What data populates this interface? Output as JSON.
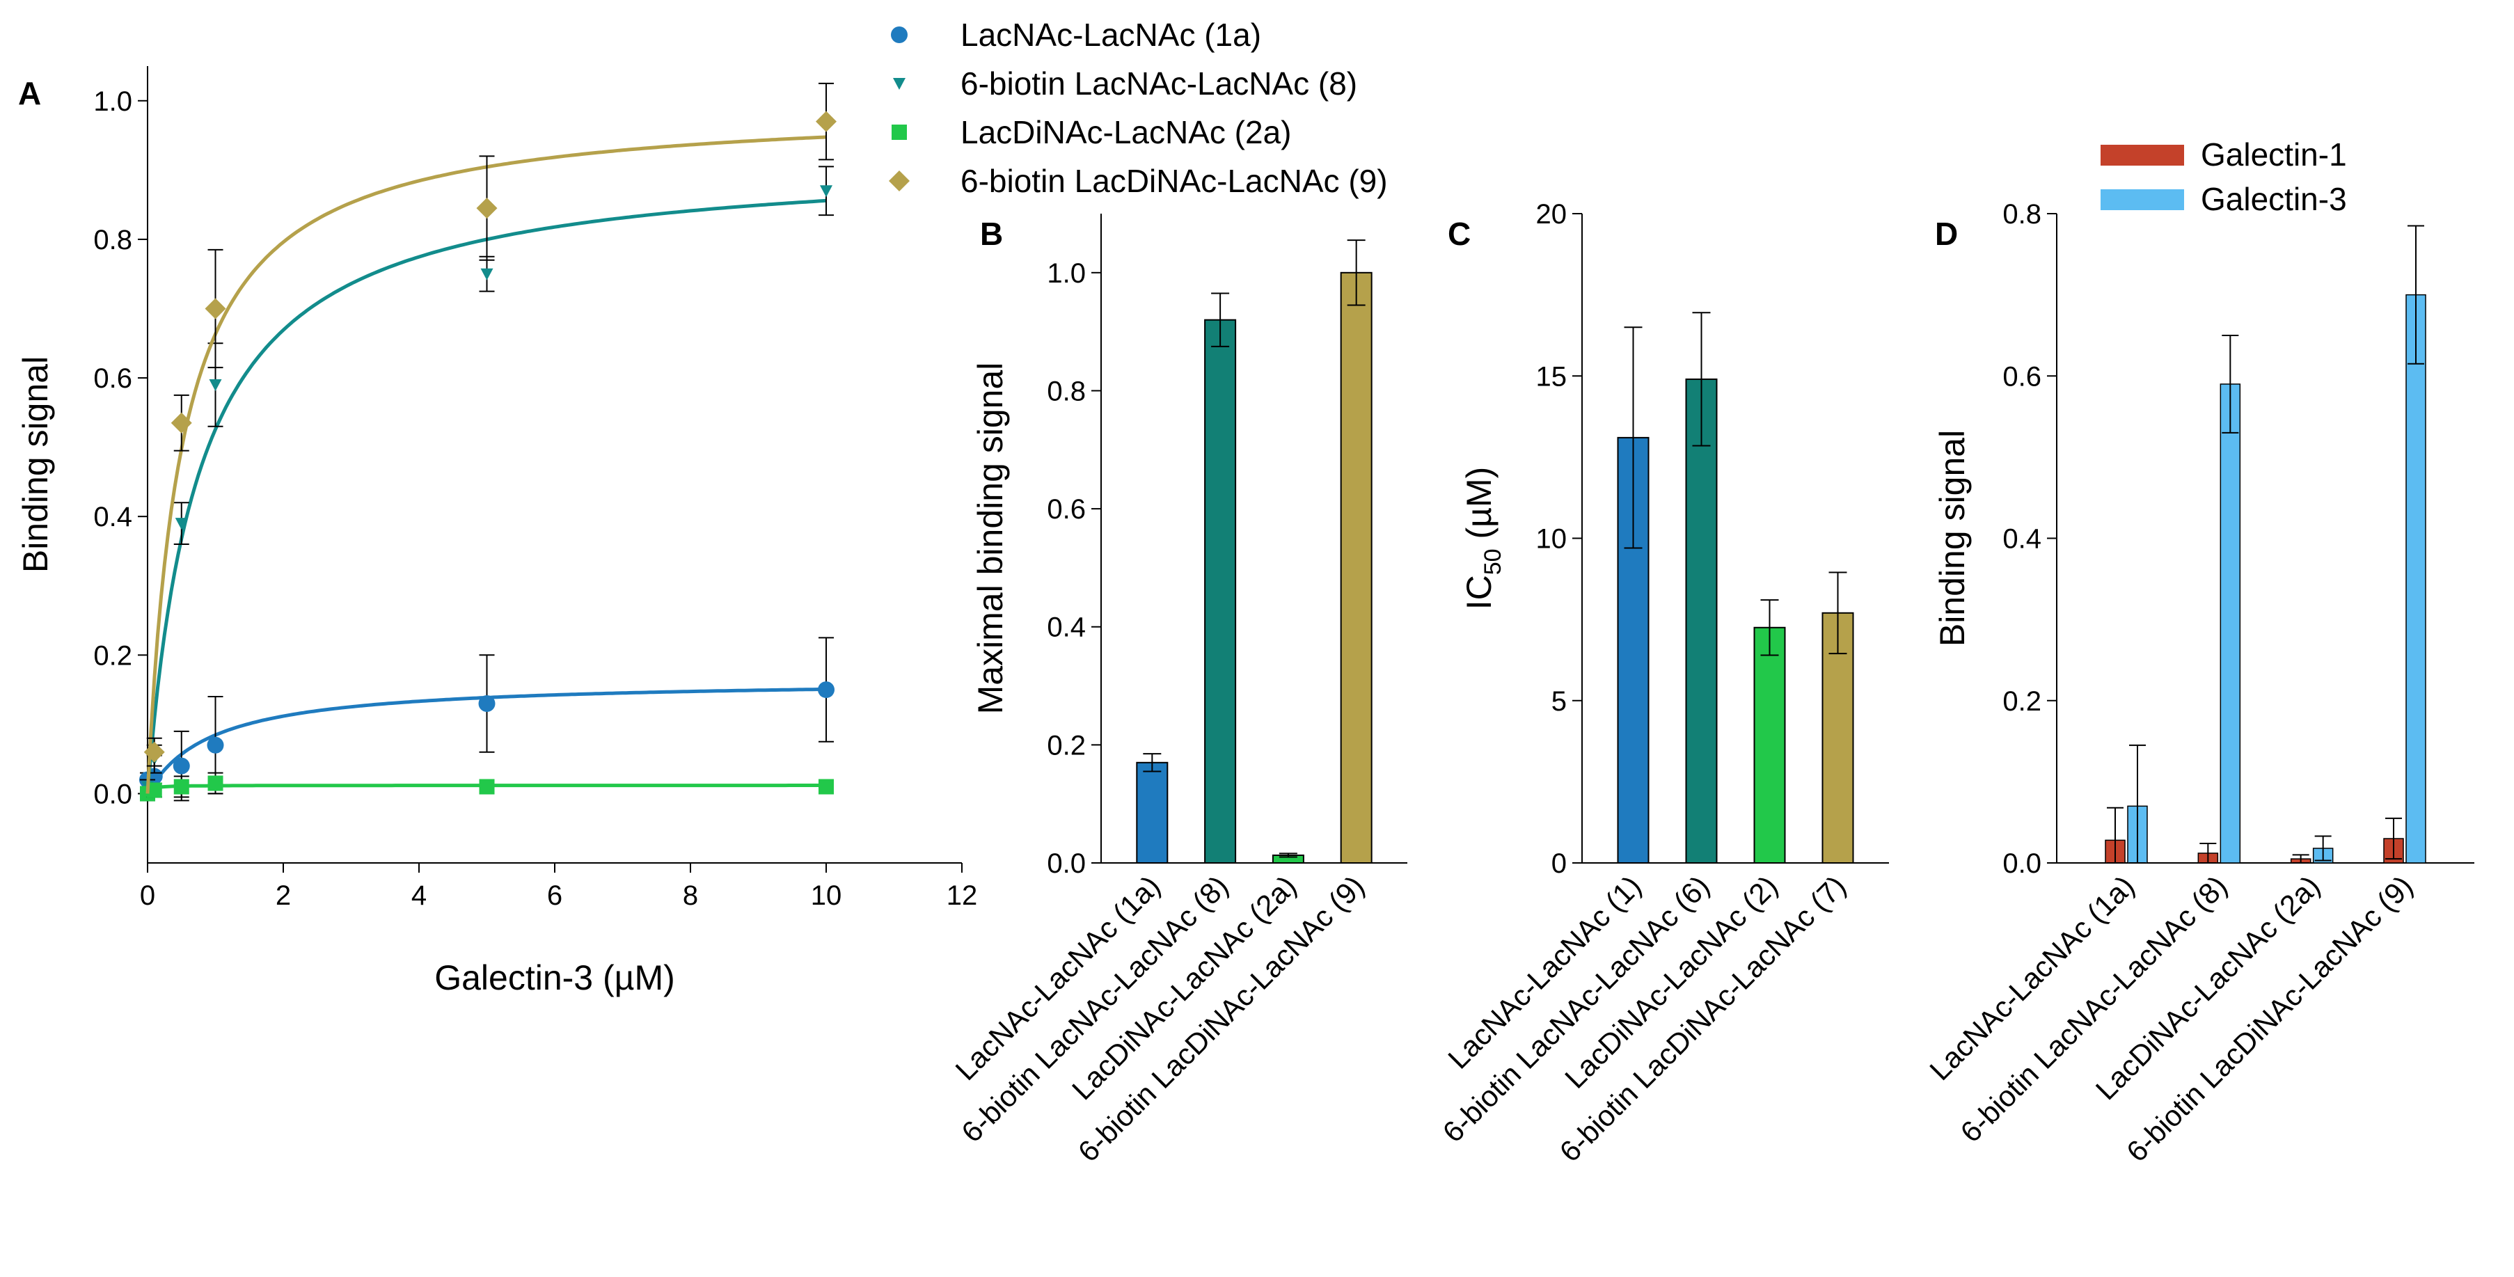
{
  "chart_data": [
    {
      "panel": "A",
      "type": "scatter",
      "xlabel": "Galectin-3 (µM)",
      "ylabel": "Binding signal",
      "xlim": [
        0,
        12
      ],
      "ylim": [
        -0.1,
        1.05
      ],
      "xticks": [
        0,
        2,
        4,
        6,
        8,
        10,
        12
      ],
      "yticks": [
        0.0,
        0.2,
        0.4,
        0.6,
        0.8,
        1.0
      ],
      "ytick_labels": [
        "0.0",
        "0.2",
        "0.4",
        "0.6",
        "0.8",
        "1.0"
      ],
      "legend_position": "top",
      "series": [
        {
          "name": "LacNAc-LacNAc (1a)",
          "color": "#1f7bbf",
          "marker": "circle",
          "x": [
            0,
            0.1,
            0.5,
            1,
            5,
            10
          ],
          "y": [
            0.02,
            0.025,
            0.04,
            0.07,
            0.13,
            0.15
          ],
          "err": [
            0.01,
            0.03,
            0.05,
            0.07,
            0.07,
            0.075
          ],
          "fit": {
            "bmax": 0.165,
            "kd": 0.95
          }
        },
        {
          "name": "6-biotin LacNAc-LacNAc (8)",
          "color": "#128c8c",
          "marker": "triangle-down",
          "x": [
            0,
            0.1,
            0.5,
            1,
            5,
            10
          ],
          "y": [
            0.01,
            0.05,
            0.39,
            0.59,
            0.75,
            0.87
          ],
          "err": [
            0.01,
            0.02,
            0.03,
            0.06,
            0.025,
            0.035
          ],
          "fit": {
            "bmax": 0.92,
            "kd": 0.75
          }
        },
        {
          "name": "LacDiNAc-LacNAc (2a)",
          "color": "#22c84a",
          "marker": "square",
          "x": [
            0,
            0.1,
            0.5,
            1,
            5,
            10
          ],
          "y": [
            0.0,
            0.005,
            0.01,
            0.015,
            0.01,
            0.01
          ],
          "err": [
            0.01,
            0.01,
            0.015,
            0.015,
            0.01,
            0.005
          ],
          "fit": {
            "bmax": 0.012,
            "kd": 0.05
          }
        },
        {
          "name": "6-biotin LacDiNAc-LacNAc (9)",
          "color": "#b5a14b",
          "marker": "diamond",
          "x": [
            0.1,
            0.5,
            1,
            5,
            10
          ],
          "y": [
            0.06,
            0.535,
            0.7,
            0.845,
            0.97
          ],
          "err": [
            0.02,
            0.04,
            0.085,
            0.075,
            0.055
          ],
          "fit": {
            "bmax": 0.995,
            "kd": 0.5
          }
        }
      ]
    },
    {
      "panel": "B",
      "type": "bar",
      "ylabel": "Maximal binding signal",
      "ylim": [
        0,
        1.1
      ],
      "yticks": [
        0.0,
        0.2,
        0.4,
        0.6,
        0.8,
        1.0
      ],
      "ytick_labels": [
        "0.0",
        "0.2",
        "0.4",
        "0.6",
        "0.8",
        "1.0"
      ],
      "categories": [
        "LacNAc-LacNAc (1a)",
        "6-biotin LacNAc-LacNAc (8)",
        "LacDiNAc-LacNAc (2a)",
        "6-biotin LacDiNAc-LacNAc (9)"
      ],
      "values": [
        0.17,
        0.92,
        0.013,
        1.0
      ],
      "errors": [
        0.015,
        0.045,
        0.003,
        0.055
      ],
      "colors": [
        "#1f7bbf",
        "#128075",
        "#22c84a",
        "#b5a14b"
      ]
    },
    {
      "panel": "C",
      "type": "bar",
      "ylabel_main": "IC",
      "ylabel_sub": "50",
      "ylabel_unit": " (µM)",
      "ylim": [
        0,
        20
      ],
      "yticks": [
        0,
        5,
        10,
        15,
        20
      ],
      "ytick_labels": [
        "0",
        "5",
        "10",
        "15",
        "20"
      ],
      "categories": [
        "LacNAc-LacNAc (1)",
        "6-biotin LacNAc-LacNAc (6)",
        "LacDiNAc-LacNAc (2)",
        "6-biotin LacDiNAc-LacNAc (7)"
      ],
      "values": [
        13.1,
        14.9,
        7.25,
        7.7
      ],
      "errors": [
        3.4,
        2.05,
        0.85,
        1.25
      ],
      "colors": [
        "#1f7bbf",
        "#128075",
        "#22c84a",
        "#b5a14b"
      ]
    },
    {
      "panel": "D",
      "type": "bar",
      "ylabel": "Binding signal",
      "ylim": [
        0,
        0.8
      ],
      "yticks": [
        0.0,
        0.2,
        0.4,
        0.6,
        0.8
      ],
      "ytick_labels": [
        "0.0",
        "0.2",
        "0.4",
        "0.6",
        "0.8"
      ],
      "categories": [
        "LacNAc-LacNAc (1a)",
        "6-biotin LacNAc-LacNAc (8)",
        "LacDiNAc-LacNAc (2a)",
        "6-biotin LacDiNAc-LacNAc (9)"
      ],
      "legend_position": "top-left",
      "series": [
        {
          "name": "Galectin-1",
          "color": "#c4412a",
          "values": [
            0.028,
            0.012,
            0.005,
            0.03
          ],
          "errors": [
            0.04,
            0.012,
            0.005,
            0.025
          ]
        },
        {
          "name": "Galectin-3",
          "color": "#5cbcf2",
          "values": [
            0.07,
            0.59,
            0.018,
            0.7
          ],
          "errors": [
            0.075,
            0.06,
            0.015,
            0.085
          ]
        }
      ]
    }
  ]
}
